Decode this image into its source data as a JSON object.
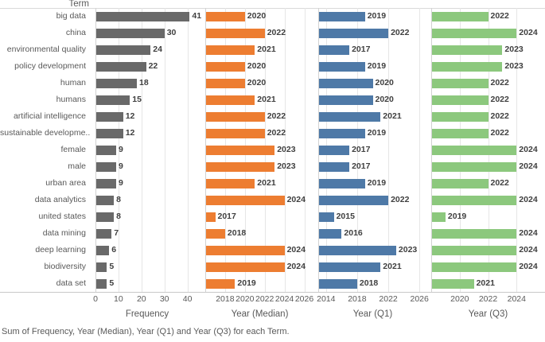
{
  "header": {
    "term_column_title": "Term"
  },
  "caption": "Sum of Frequency, Year (Median), Year (Q1) and Year (Q3) for each Term.",
  "chart_data": {
    "type": "bar",
    "orientation": "horizontal",
    "grid": true,
    "legend": "none",
    "categories_title": "Term",
    "categories": [
      "big data",
      "china",
      "environmental quality",
      "policy development",
      "human",
      "humans",
      "artificial intelligence",
      "sustainable developme..",
      "female",
      "male",
      "urban area",
      "data analytics",
      "united states",
      "data mining",
      "deep learning",
      "biodiversity",
      "data set"
    ],
    "series": [
      {
        "name": "Frequency",
        "axis_title": "Frequency",
        "color": "#696969",
        "axis_min": 0,
        "axis_max": 45,
        "ticks": [
          0,
          10,
          20,
          30,
          40
        ],
        "values": [
          41,
          30,
          24,
          22,
          18,
          15,
          12,
          12,
          9,
          9,
          9,
          8,
          8,
          7,
          6,
          5,
          5
        ]
      },
      {
        "name": "Year (Median)",
        "axis_title": "Year (Median)",
        "color": "#ED7D31",
        "axis_min": 2016,
        "axis_max": 2027,
        "ticks": [
          2018,
          2020,
          2022,
          2024,
          2026
        ],
        "values": [
          2020,
          2022,
          2021,
          2020,
          2020,
          2021,
          2022,
          2022,
          2023,
          2023,
          2021,
          2024,
          2017,
          2018,
          2024,
          2024,
          2019
        ]
      },
      {
        "name": "Year (Q1)",
        "axis_title": "Year (Q1)",
        "color": "#4E79A7",
        "axis_min": 2013,
        "axis_max": 2027,
        "ticks": [
          2014,
          2018,
          2022,
          2026
        ],
        "values": [
          2019,
          2022,
          2017,
          2019,
          2020,
          2020,
          2021,
          2019,
          2017,
          2017,
          2019,
          2022,
          2015,
          2016,
          2023,
          2021,
          2018
        ]
      },
      {
        "name": "Year (Q3)",
        "axis_title": "Year (Q3)",
        "color": "#8CC87D",
        "axis_min": 2018,
        "axis_max": 2026,
        "ticks": [
          2020,
          2022,
          2024
        ],
        "values": [
          2022,
          2024,
          2023,
          2023,
          2022,
          2022,
          2022,
          2022,
          2024,
          2024,
          2022,
          2024,
          2019,
          2024,
          2024,
          2024,
          2021
        ]
      }
    ]
  }
}
